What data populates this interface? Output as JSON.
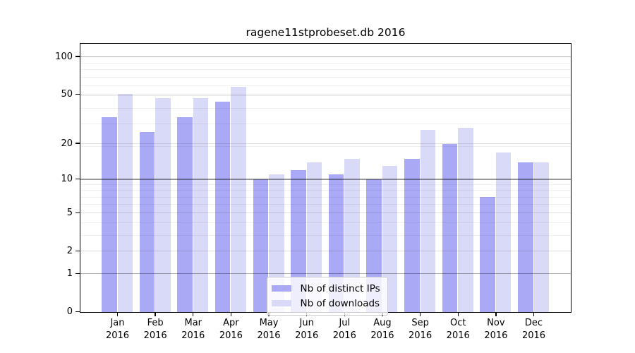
{
  "chart_data": {
    "type": "bar",
    "title": "ragene11stprobeset.db 2016",
    "categories": [
      "Jan",
      "Feb",
      "Mar",
      "Apr",
      "May",
      "Jun",
      "Jul",
      "Aug",
      "Sep",
      "Oct",
      "Nov",
      "Dec"
    ],
    "x_year": "2016",
    "series": [
      {
        "name": "Nb of distinct IPs",
        "color": "#a9a9f6",
        "values": [
          33,
          25,
          33,
          44,
          10,
          12,
          11,
          10,
          15,
          20,
          7,
          14
        ]
      },
      {
        "name": "Nb of downloads",
        "color": "#d9d9f8",
        "values": [
          51,
          47,
          47,
          58,
          11,
          14,
          15,
          13,
          26,
          27,
          17,
          14
        ]
      }
    ],
    "y_axis": {
      "scale": "log1p",
      "ticks": [
        0,
        1,
        2,
        5,
        10,
        20,
        50,
        100
      ],
      "top_value": 125.4,
      "gridlines_strong": [
        1,
        100
      ],
      "gridlines_xstrong": [
        10
      ],
      "gridlines_medium": [
        2,
        5,
        20,
        50
      ],
      "gridlines_minor": [
        3,
        4,
        6,
        7,
        8,
        9,
        19,
        29,
        39,
        49,
        59,
        69,
        79,
        89
      ]
    },
    "legend_position": "lower center",
    "grid": "on"
  }
}
